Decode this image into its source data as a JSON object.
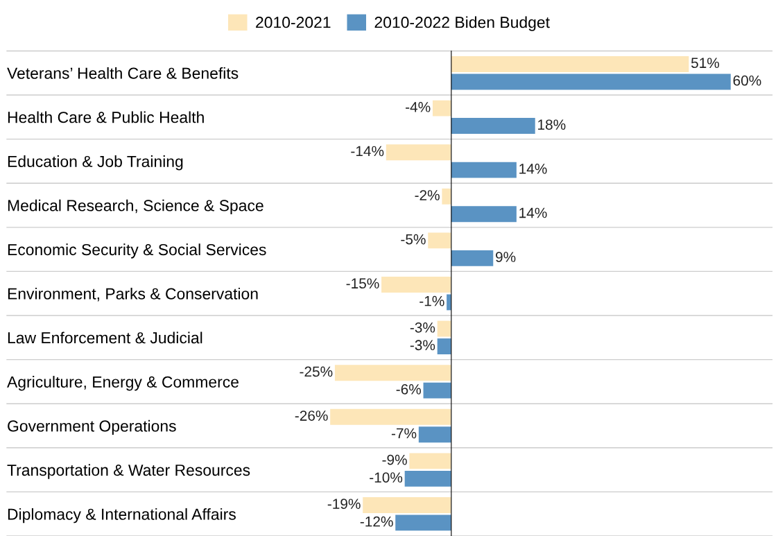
{
  "chart_data": {
    "type": "bar",
    "orientation": "horizontal",
    "categories": [
      "Veterans’ Health Care & Benefits",
      "Health Care & Public Health",
      "Education & Job Training",
      "Medical Research, Science & Space",
      "Economic Security & Social Services",
      "Environment, Parks & Conservation",
      "Law Enforcement & Judicial",
      "Agriculture, Energy & Commerce",
      "Government Operations",
      "Transportation & Water Resources",
      "Diplomacy & International Affairs"
    ],
    "series": [
      {
        "name": "2010-2021",
        "color": "#fde6b8",
        "values": [
          51,
          -4,
          -14,
          -2,
          -5,
          -15,
          -3,
          -25,
          -26,
          -9,
          -19
        ],
        "value_labels": [
          "51%",
          "-4%",
          "-14%",
          "-2%",
          "-5%",
          "-15%",
          "-3%",
          "-25%",
          "-26%",
          "-9%",
          "-19%"
        ]
      },
      {
        "name": "2010-2022 Biden Budget",
        "color": "#5a93c3",
        "values": [
          60,
          18,
          14,
          14,
          9,
          -1,
          -3,
          -6,
          -7,
          -10,
          -12
        ],
        "value_labels": [
          "60%",
          "18%",
          "14%",
          "14%",
          "9%",
          "-1%",
          "-3%",
          "-6%",
          "-7%",
          "-10%",
          "-12%"
        ]
      }
    ],
    "tick_labels": "y",
    "grid": "y",
    "legend": "top"
  }
}
